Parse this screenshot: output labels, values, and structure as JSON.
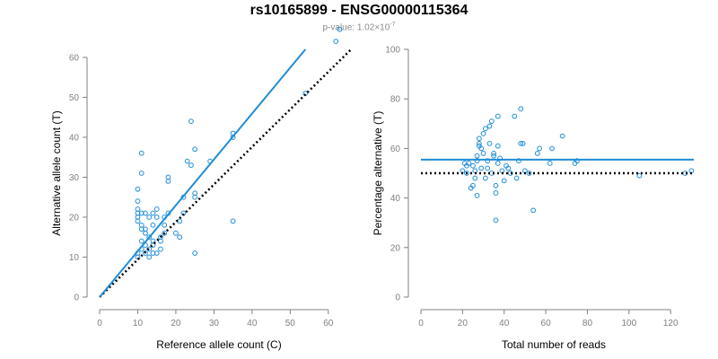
{
  "header": {
    "title": "rs10165899 - ENSG00000115364",
    "subtitle_prefix": "p-value: 1.02×10",
    "subtitle_exponent": "-7"
  },
  "colors": {
    "points": "#1f8dd6",
    "fit_line": "#1f8dd6",
    "reference_line": "#000000",
    "axis": "#808080"
  },
  "chart_data": [
    {
      "type": "scatter",
      "xlabel": "Reference allele count (C)",
      "ylabel": "Alternative allele count (T)",
      "xlim": [
        0,
        65
      ],
      "ylim": [
        0,
        62
      ],
      "xticks": [
        0,
        10,
        20,
        30,
        40,
        50,
        60
      ],
      "yticks": [
        0,
        10,
        20,
        30,
        40,
        50,
        60
      ],
      "grid": false,
      "fit_line": {
        "style": "solid",
        "from": [
          0,
          0
        ],
        "to": [
          54,
          62
        ]
      },
      "reference_line": {
        "style": "dotted",
        "from": [
          0,
          0
        ],
        "to": [
          66,
          62
        ]
      },
      "points": [
        [
          10,
          10
        ],
        [
          10,
          11
        ],
        [
          11,
          12
        ],
        [
          12,
          13
        ],
        [
          13,
          10
        ],
        [
          11,
          14
        ],
        [
          12,
          16
        ],
        [
          12,
          17
        ],
        [
          11,
          18
        ],
        [
          10,
          20
        ],
        [
          10,
          21
        ],
        [
          10,
          22
        ],
        [
          10,
          24
        ],
        [
          10,
          27
        ],
        [
          11,
          31
        ],
        [
          11,
          36
        ],
        [
          10,
          19
        ],
        [
          11,
          21
        ],
        [
          12,
          21
        ],
        [
          13,
          20
        ],
        [
          14,
          21
        ],
        [
          15,
          20
        ],
        [
          15,
          22
        ],
        [
          14,
          18
        ],
        [
          13,
          15
        ],
        [
          14,
          11
        ],
        [
          15,
          11
        ],
        [
          16,
          12
        ],
        [
          16,
          15
        ],
        [
          17,
          16
        ],
        [
          17,
          18
        ],
        [
          17,
          20
        ],
        [
          18,
          21
        ],
        [
          18,
          29
        ],
        [
          18,
          30
        ],
        [
          20,
          16
        ],
        [
          21,
          15
        ],
        [
          21,
          19
        ],
        [
          22,
          21
        ],
        [
          22,
          25
        ],
        [
          23,
          34
        ],
        [
          24,
          44
        ],
        [
          24,
          33
        ],
        [
          25,
          37
        ],
        [
          25,
          26
        ],
        [
          25,
          25
        ],
        [
          25,
          11
        ],
        [
          29,
          34
        ],
        [
          35,
          40
        ],
        [
          35,
          41
        ],
        [
          35,
          19
        ],
        [
          54,
          51
        ],
        [
          62,
          64
        ],
        [
          63,
          67
        ],
        [
          12,
          11
        ],
        [
          13,
          12
        ],
        [
          14,
          13
        ],
        [
          16,
          14
        ],
        [
          11,
          17
        ],
        [
          14,
          14
        ]
      ]
    },
    {
      "type": "scatter",
      "xlabel": "Total number of reads",
      "ylabel": "Percentage alternative (T)",
      "xlim": [
        0,
        132
      ],
      "ylim": [
        0,
        100
      ],
      "xticks": [
        0,
        20,
        40,
        60,
        80,
        100,
        120
      ],
      "yticks": [
        0,
        20,
        40,
        60,
        80,
        100
      ],
      "grid": false,
      "fit_line": {
        "style": "solid",
        "y": 55.5
      },
      "reference_line": {
        "style": "dotted",
        "y": 50
      },
      "points": [
        [
          20,
          51
        ],
        [
          21,
          54
        ],
        [
          22,
          53
        ],
        [
          22,
          50
        ],
        [
          23,
          54
        ],
        [
          24,
          44
        ],
        [
          25,
          45
        ],
        [
          25,
          53
        ],
        [
          26,
          51
        ],
        [
          26,
          48
        ],
        [
          27,
          55
        ],
        [
          27,
          57
        ],
        [
          27,
          41
        ],
        [
          28,
          64
        ],
        [
          28,
          61
        ],
        [
          28,
          62
        ],
        [
          29,
          60
        ],
        [
          29,
          52
        ],
        [
          30,
          58
        ],
        [
          30,
          66
        ],
        [
          31,
          68
        ],
        [
          31,
          48
        ],
        [
          32,
          52
        ],
        [
          32,
          55
        ],
        [
          33,
          62
        ],
        [
          33,
          69
        ],
        [
          34,
          71
        ],
        [
          34,
          50
        ],
        [
          35,
          57
        ],
        [
          35,
          58
        ],
        [
          36,
          42
        ],
        [
          36,
          45
        ],
        [
          36,
          31
        ],
        [
          37,
          73
        ],
        [
          37,
          61
        ],
        [
          37,
          54
        ],
        [
          38,
          56
        ],
        [
          39,
          51
        ],
        [
          40,
          47
        ],
        [
          41,
          53
        ],
        [
          42,
          52
        ],
        [
          43,
          50
        ],
        [
          45,
          73
        ],
        [
          46,
          48
        ],
        [
          47,
          55
        ],
        [
          48,
          62
        ],
        [
          48,
          76
        ],
        [
          49,
          62
        ],
        [
          50,
          51
        ],
        [
          52,
          50
        ],
        [
          54,
          35
        ],
        [
          56,
          58
        ],
        [
          57,
          60
        ],
        [
          62,
          54
        ],
        [
          63,
          60
        ],
        [
          68,
          65
        ],
        [
          74,
          54
        ],
        [
          75,
          55
        ],
        [
          105,
          49
        ],
        [
          127,
          50
        ],
        [
          130,
          51
        ]
      ]
    }
  ]
}
